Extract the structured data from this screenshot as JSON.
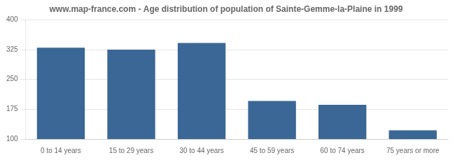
{
  "chart_data": {
    "type": "bar",
    "title": "www.map-france.com - Age distribution of population of Sainte-Gemme-la-Plaine in 1999",
    "categories": [
      "0 to 14 years",
      "15 to 29 years",
      "30 to 44 years",
      "45 to 59 years",
      "60 to 74 years",
      "75 years or more"
    ],
    "values": [
      330,
      325,
      342,
      196,
      186,
      122
    ],
    "color": "#3a6795",
    "ylim": [
      100,
      400
    ],
    "yticks": [
      100,
      175,
      250,
      325,
      400
    ],
    "grid": true
  }
}
